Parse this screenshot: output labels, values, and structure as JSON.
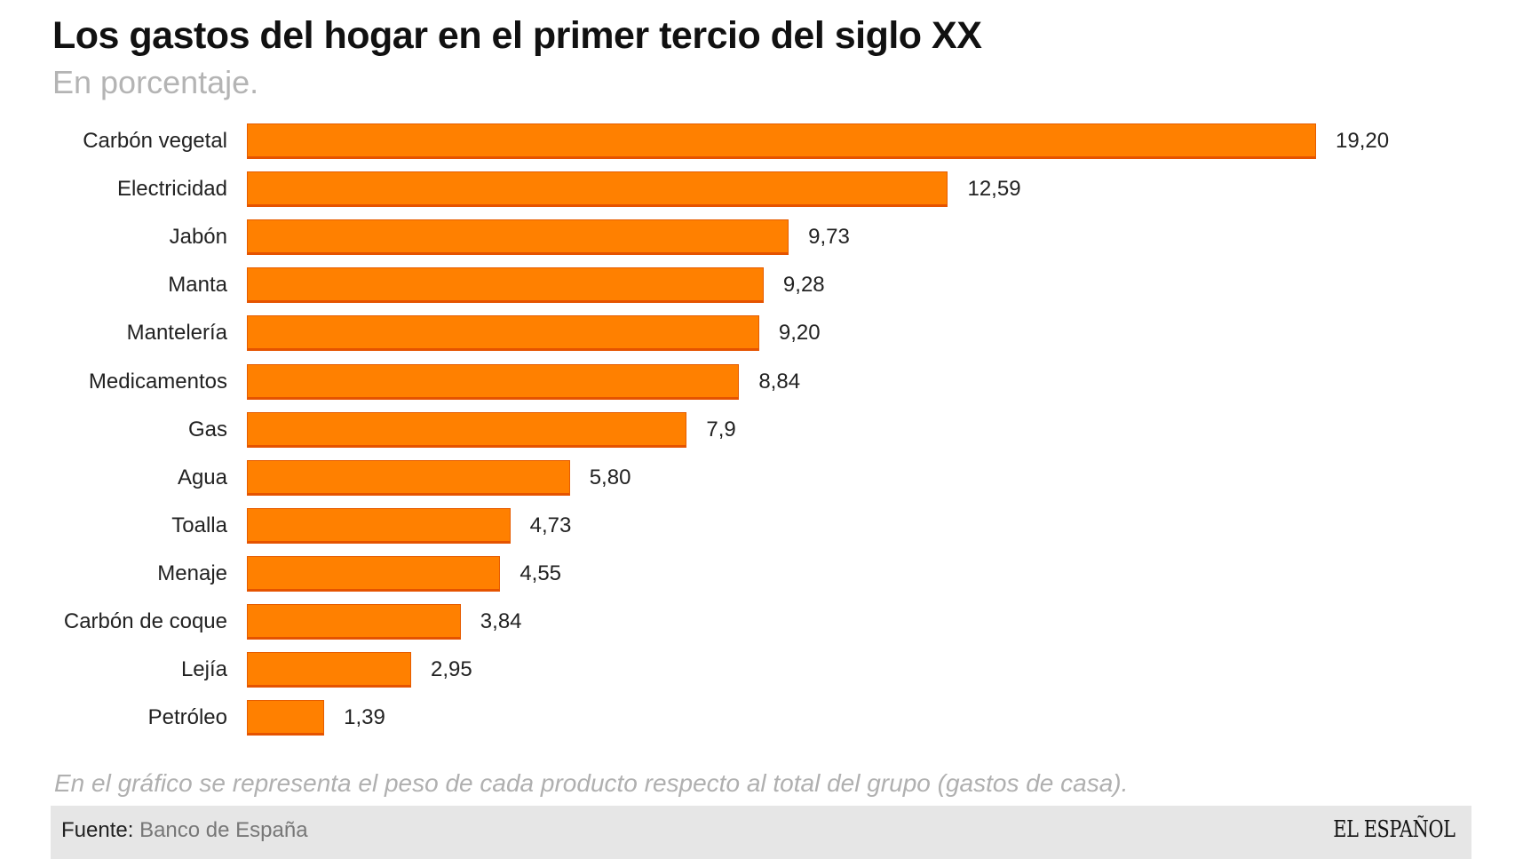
{
  "chart_data": {
    "type": "bar",
    "orientation": "horizontal",
    "title": "Los gastos del hogar en el primer tercio del siglo XX",
    "subtitle": "En porcentaje.",
    "categories": [
      "Carbón vegetal",
      "Electricidad",
      "Jabón",
      "Manta",
      "Mantelería",
      "Medicamentos",
      "Gas",
      "Agua",
      "Toalla",
      "Menaje",
      "Carbón de coque",
      "Lejía",
      "Petróleo"
    ],
    "values": [
      19.2,
      12.59,
      9.73,
      9.28,
      9.2,
      8.84,
      7.9,
      5.8,
      4.73,
      4.55,
      3.84,
      2.95,
      1.39
    ],
    "value_labels": [
      "19,20",
      "12,59",
      "9,73",
      "9,28",
      "9,20",
      "8,84",
      "7,9",
      "5,80",
      "4,73",
      "4,55",
      "3,84",
      "2,95",
      "1,39"
    ],
    "xlabel": "",
    "ylabel": "",
    "xlim": [
      0,
      19.2
    ],
    "grid": false,
    "bar_color": "#ff8000"
  },
  "note": "En el gráfico se representa el peso de cada producto respecto al total del grupo (gastos de casa).",
  "footer": {
    "source_label": "Fuente:",
    "source_value": "Banco de España",
    "logo": "EL ESPAÑOL"
  }
}
